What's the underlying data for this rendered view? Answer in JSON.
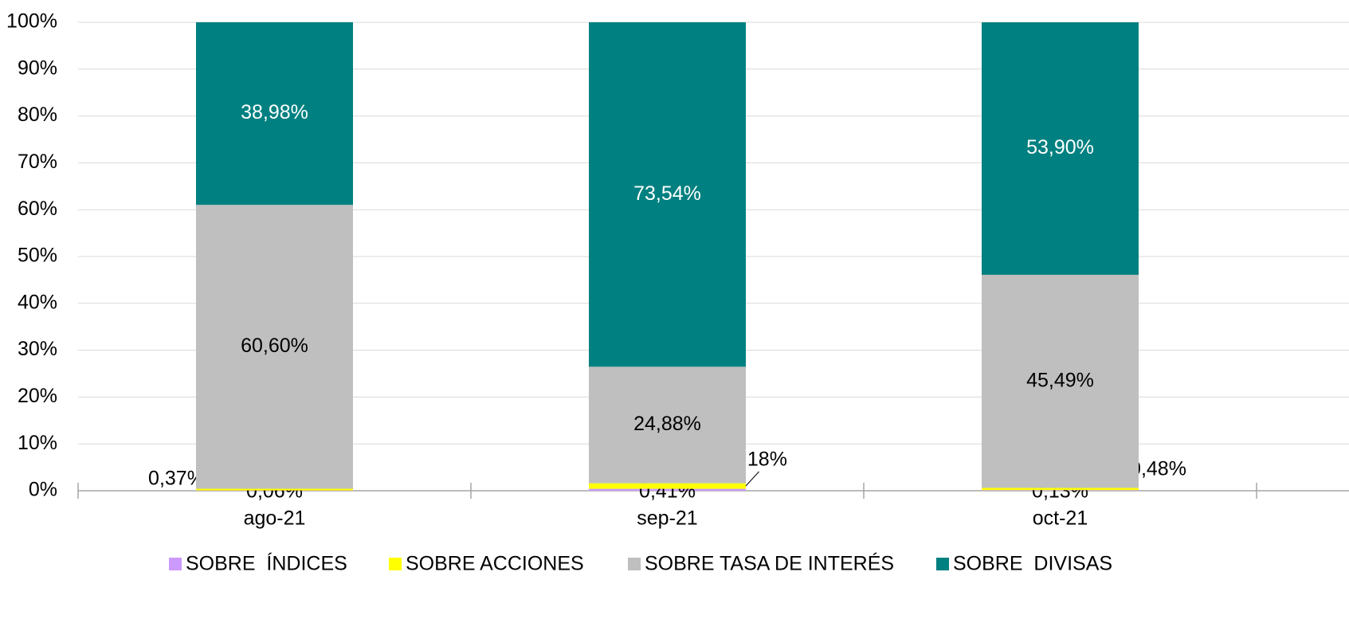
{
  "chart_data": {
    "type": "stacked_bar",
    "categories": [
      "ago-21",
      "sep-21",
      "oct-21"
    ],
    "series": [
      {
        "name": "SOBRE  ÍNDICES",
        "color": "#cc99ff",
        "values": [
          0.06,
          0.41,
          0.13
        ],
        "value_labels": [
          "0,06%",
          "0,41%",
          "0,13%"
        ]
      },
      {
        "name": "SOBRE ACCIONES",
        "color": "#ffff00",
        "values": [
          0.37,
          1.18,
          0.48
        ],
        "value_labels": [
          "0,37%",
          "1,18%",
          "0,48%"
        ]
      },
      {
        "name": "SOBRE TASA DE INTERÉS",
        "color": "#bfbfbf",
        "values": [
          60.6,
          24.88,
          45.49
        ],
        "value_labels": [
          "60,60%",
          "24,88%",
          "45,49%"
        ]
      },
      {
        "name": "SOBRE  DIVISAS",
        "color": "#008080",
        "values": [
          38.98,
          73.54,
          53.9
        ],
        "value_labels": [
          "38,98%",
          "73,54%",
          "53,90%"
        ]
      }
    ],
    "ylim": [
      0,
      100
    ],
    "yticks": [
      {
        "value": 0,
        "label": "0%"
      },
      {
        "value": 10,
        "label": "10%"
      },
      {
        "value": 20,
        "label": "20%"
      },
      {
        "value": 30,
        "label": "30%"
      },
      {
        "value": 40,
        "label": "40%"
      },
      {
        "value": 50,
        "label": "50%"
      },
      {
        "value": 60,
        "label": "60%"
      },
      {
        "value": 70,
        "label": "70%"
      },
      {
        "value": 80,
        "label": "80%"
      },
      {
        "value": 90,
        "label": "90%"
      },
      {
        "value": 100,
        "label": "100%"
      }
    ],
    "grid": true,
    "legend": "bottom"
  }
}
